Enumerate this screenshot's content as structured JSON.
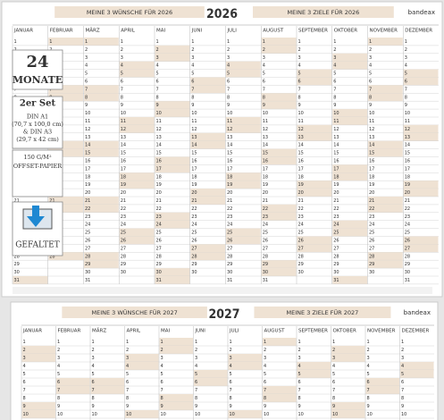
{
  "brand": "bandeax",
  "months": [
    "JANUAR",
    "FEBRUAR",
    "MÄRZ",
    "APRIL",
    "MAI",
    "JUNI",
    "JULI",
    "AUGUST",
    "SEPTEMBER",
    "OKTOBER",
    "NOVEMBER",
    "DEZEMBER"
  ],
  "days": [
    1,
    2,
    3,
    4,
    5,
    6,
    7,
    8,
    9,
    10,
    11,
    12,
    13,
    14,
    15,
    16,
    17,
    18,
    19,
    20,
    21,
    22,
    23,
    24,
    25,
    26,
    27,
    28,
    29,
    30,
    31
  ],
  "calendars": [
    {
      "year": 2026,
      "wishes": "MEINE 3 WÜNSCHE FÜR 2026",
      "goals": "MEINE 3 ZIELE FÜR 2026"
    },
    {
      "year": 2027,
      "wishes": "MEINE 3 WÜNSCHE FÜR 2027",
      "goals": "MEINE 3 ZIELE FÜR 2027"
    }
  ],
  "badges": [
    {
      "lines": [
        "24",
        "MONATE"
      ]
    },
    {
      "lines": [
        "2er Set",
        "DIN A1",
        "(70,7 x 100,0 cm)",
        "& DIN A3",
        "(29,7 x 42 cm)"
      ]
    },
    {
      "lines": [
        "150 G/M²",
        "OFFSET-PAPIER"
      ]
    },
    {
      "lines": [
        "GEFALTET"
      ]
    }
  ]
}
